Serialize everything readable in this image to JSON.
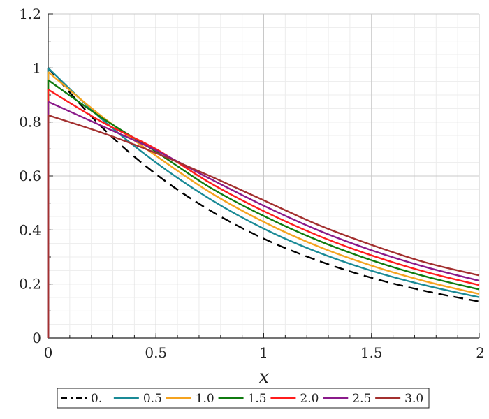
{
  "chart_data": {
    "type": "line",
    "xlabel": "x",
    "ylabel": "",
    "xlim": [
      0,
      2
    ],
    "ylim": [
      0,
      1.2
    ],
    "grid": true,
    "legend_position": "bottom",
    "x_ticks": [
      {
        "value": 0,
        "label": "0"
      },
      {
        "value": 0.5,
        "label": "0.5"
      },
      {
        "value": 1,
        "label": "1"
      },
      {
        "value": 1.5,
        "label": "1.5"
      },
      {
        "value": 2,
        "label": "2"
      }
    ],
    "y_ticks": [
      {
        "value": 0,
        "label": "0"
      },
      {
        "value": 0.2,
        "label": "0.2"
      },
      {
        "value": 0.4,
        "label": "0.4"
      },
      {
        "value": 0.6,
        "label": "0.6"
      },
      {
        "value": 0.8,
        "label": "0.8"
      },
      {
        "value": 1,
        "label": "1"
      },
      {
        "value": 1.2,
        "label": "1.2"
      }
    ],
    "x": [
      0,
      0.25,
      0.5,
      0.75,
      1.0,
      1.25,
      1.5,
      1.75,
      2.0
    ],
    "series": [
      {
        "name": "0.",
        "color": "#000000",
        "dashed": true,
        "values": [
          1.0,
          0.78,
          0.607,
          0.473,
          0.368,
          0.287,
          0.223,
          0.174,
          0.135
        ]
      },
      {
        "name": "0.5",
        "color": "#1a8a96",
        "dashed": false,
        "values": [
          1.0,
          0.81,
          0.65,
          0.515,
          0.405,
          0.318,
          0.249,
          0.195,
          0.151
        ]
      },
      {
        "name": "1.0",
        "color": "#f5a31f",
        "dashed": false,
        "values": [
          0.985,
          0.82,
          0.675,
          0.54,
          0.43,
          0.34,
          0.268,
          0.21,
          0.163
        ]
      },
      {
        "name": "1.5",
        "color": "#0f7a0f",
        "dashed": false,
        "values": [
          0.955,
          0.815,
          0.69,
          0.558,
          0.452,
          0.362,
          0.288,
          0.228,
          0.18
        ]
      },
      {
        "name": "2.0",
        "color": "#ff1c1c",
        "dashed": false,
        "values": [
          0.92,
          0.8,
          0.7,
          0.575,
          0.47,
          0.38,
          0.306,
          0.245,
          0.196
        ]
      },
      {
        "name": "2.5",
        "color": "#8a1a8a",
        "dashed": false,
        "values": [
          0.875,
          0.785,
          0.695,
          0.59,
          0.49,
          0.4,
          0.325,
          0.263,
          0.212
        ]
      },
      {
        "name": "3.0",
        "color": "#a3302f",
        "dashed": false,
        "values": [
          0.825,
          0.76,
          0.685,
          0.6,
          0.51,
          0.42,
          0.345,
          0.28,
          0.232
        ]
      }
    ]
  }
}
